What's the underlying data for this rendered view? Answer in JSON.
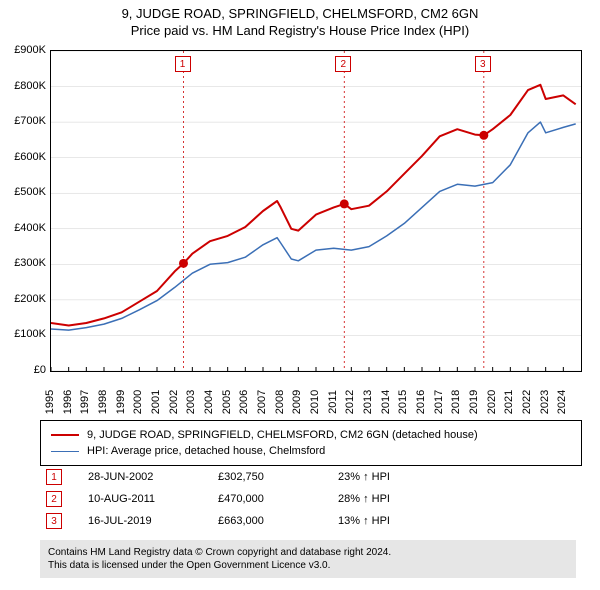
{
  "title_line1": "9, JUDGE ROAD, SPRINGFIELD, CHELMSFORD, CM2 6GN",
  "title_line2": "Price paid vs. HM Land Registry's House Price Index (HPI)",
  "chart": {
    "type": "line",
    "background_color": "#ffffff",
    "border_color": "#000000",
    "y": {
      "min": 0,
      "max": 900000,
      "tick_step": 100000,
      "ticks": [
        "£0",
        "£100K",
        "£200K",
        "£300K",
        "£400K",
        "£500K",
        "£600K",
        "£700K",
        "£800K",
        "£900K"
      ],
      "label_fontsize": 11
    },
    "x": {
      "min": 1995,
      "max": 2025,
      "ticks": [
        1995,
        1996,
        1997,
        1998,
        1999,
        2000,
        2001,
        2002,
        2003,
        2004,
        2005,
        2006,
        2007,
        2008,
        2009,
        2010,
        2011,
        2012,
        2013,
        2014,
        2015,
        2016,
        2017,
        2018,
        2019,
        2020,
        2021,
        2022,
        2023,
        2024
      ],
      "label_fontsize": 11
    },
    "grid_color": "#d0d0d0",
    "series": [
      {
        "name": "9, JUDGE ROAD, SPRINGFIELD, CHELMSFORD, CM2 6GN (detached house)",
        "color": "#cc0000",
        "line_width": 2,
        "points": [
          [
            1995,
            135000
          ],
          [
            1996,
            128000
          ],
          [
            1997,
            135000
          ],
          [
            1998,
            148000
          ],
          [
            1999,
            165000
          ],
          [
            2000,
            195000
          ],
          [
            2001,
            225000
          ],
          [
            2002,
            280000
          ],
          [
            2002.5,
            302750
          ],
          [
            2003,
            330000
          ],
          [
            2004,
            365000
          ],
          [
            2005,
            380000
          ],
          [
            2006,
            405000
          ],
          [
            2007,
            450000
          ],
          [
            2007.8,
            478000
          ],
          [
            2008,
            460000
          ],
          [
            2008.6,
            400000
          ],
          [
            2009,
            395000
          ],
          [
            2010,
            440000
          ],
          [
            2011,
            460000
          ],
          [
            2011.6,
            470000
          ],
          [
            2012,
            455000
          ],
          [
            2013,
            465000
          ],
          [
            2014,
            505000
          ],
          [
            2015,
            555000
          ],
          [
            2016,
            605000
          ],
          [
            2017,
            660000
          ],
          [
            2018,
            680000
          ],
          [
            2019,
            665000
          ],
          [
            2019.5,
            663000
          ],
          [
            2020,
            680000
          ],
          [
            2021,
            720000
          ],
          [
            2022,
            790000
          ],
          [
            2022.7,
            805000
          ],
          [
            2023,
            765000
          ],
          [
            2024,
            775000
          ],
          [
            2024.7,
            750000
          ]
        ]
      },
      {
        "name": "HPI: Average price, detached house, Chelmsford",
        "color": "#3b6fb6",
        "line_width": 1.5,
        "points": [
          [
            1995,
            118000
          ],
          [
            1996,
            115000
          ],
          [
            1997,
            122000
          ],
          [
            1998,
            132000
          ],
          [
            1999,
            148000
          ],
          [
            2000,
            172000
          ],
          [
            2001,
            198000
          ],
          [
            2002,
            235000
          ],
          [
            2003,
            275000
          ],
          [
            2004,
            300000
          ],
          [
            2005,
            305000
          ],
          [
            2006,
            320000
          ],
          [
            2007,
            355000
          ],
          [
            2007.8,
            375000
          ],
          [
            2008,
            360000
          ],
          [
            2008.6,
            315000
          ],
          [
            2009,
            310000
          ],
          [
            2010,
            340000
          ],
          [
            2011,
            345000
          ],
          [
            2012,
            340000
          ],
          [
            2013,
            350000
          ],
          [
            2014,
            380000
          ],
          [
            2015,
            415000
          ],
          [
            2016,
            460000
          ],
          [
            2017,
            505000
          ],
          [
            2018,
            525000
          ],
          [
            2019,
            520000
          ],
          [
            2020,
            530000
          ],
          [
            2021,
            580000
          ],
          [
            2022,
            670000
          ],
          [
            2022.7,
            700000
          ],
          [
            2023,
            670000
          ],
          [
            2024,
            685000
          ],
          [
            2024.7,
            695000
          ]
        ]
      }
    ],
    "events": [
      {
        "n": "1",
        "year": 2002.5,
        "price": 302750
      },
      {
        "n": "2",
        "year": 2011.6,
        "price": 470000
      },
      {
        "n": "3",
        "year": 2019.5,
        "price": 663000
      }
    ],
    "event_line_color": "#cc0000",
    "event_point_color": "#cc0000"
  },
  "legend": {
    "items": [
      {
        "color": "#cc0000",
        "label": "9, JUDGE ROAD, SPRINGFIELD, CHELMSFORD, CM2 6GN (detached house)"
      },
      {
        "color": "#3b6fb6",
        "label": "HPI: Average price, detached house, Chelmsford"
      }
    ]
  },
  "events_table": [
    {
      "n": "1",
      "date": "28-JUN-2002",
      "price": "£302,750",
      "delta": "23% ↑ HPI"
    },
    {
      "n": "2",
      "date": "10-AUG-2011",
      "price": "£470,000",
      "delta": "28% ↑ HPI"
    },
    {
      "n": "3",
      "date": "16-JUL-2019",
      "price": "£663,000",
      "delta": "13% ↑ HPI"
    }
  ],
  "footer_line1": "Contains HM Land Registry data © Crown copyright and database right 2024.",
  "footer_line2": "This data is licensed under the Open Government Licence v3.0."
}
